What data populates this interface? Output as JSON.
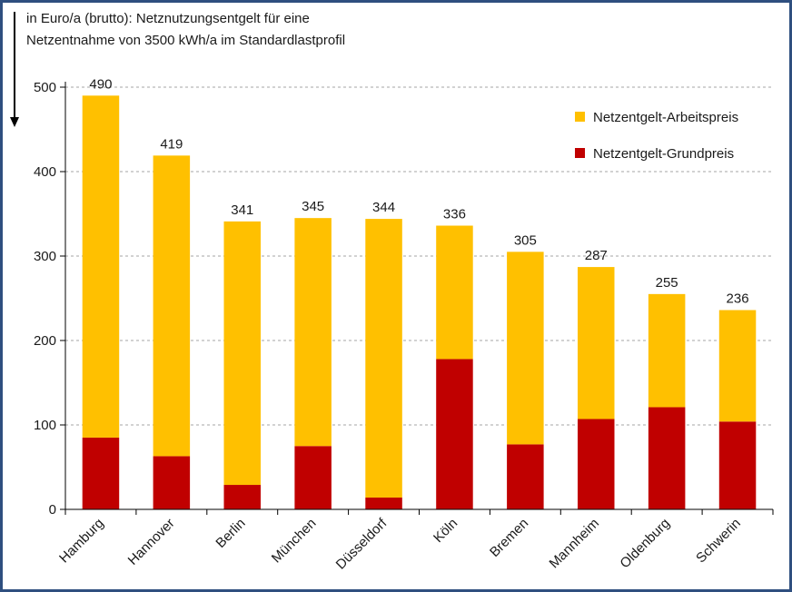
{
  "chart_data": {
    "type": "bar",
    "stacked": true,
    "title": "",
    "ylabel_lines": [
      "in Euro/a (brutto):  Netznutzungsentgelt  für eine",
      "Netzentnahme  von 3500 kWh/a  im Standardlastprofil"
    ],
    "xlabel": "",
    "ylim": [
      0,
      500
    ],
    "yticks": [
      "0",
      "100",
      "200",
      "300",
      "400",
      "500"
    ],
    "grid": true,
    "legend_position": "top-right",
    "categories": [
      "Hamburg",
      "Hannover",
      "Berlin",
      "München",
      "Düsseldorf",
      "Köln",
      "Bremen",
      "Mannheim",
      "Oldenburg",
      "Schwerin"
    ],
    "totals": [
      "490",
      "419",
      "341",
      "345",
      "344",
      "336",
      "305",
      "287",
      "255",
      "236"
    ],
    "series": [
      {
        "name": "Netzentgelt-Grundpreis",
        "color": "#c00000",
        "values": [
          85,
          63,
          29,
          75,
          14,
          178,
          77,
          107,
          121,
          104
        ]
      },
      {
        "name": "Netzentgelt-Arbeitspreis",
        "color": "#ffc000",
        "values": [
          405,
          356,
          312,
          270,
          330,
          158,
          228,
          180,
          134,
          132
        ]
      }
    ],
    "legend_order": [
      "Netzentgelt-Arbeitspreis",
      "Netzentgelt-Grundpreis"
    ]
  }
}
